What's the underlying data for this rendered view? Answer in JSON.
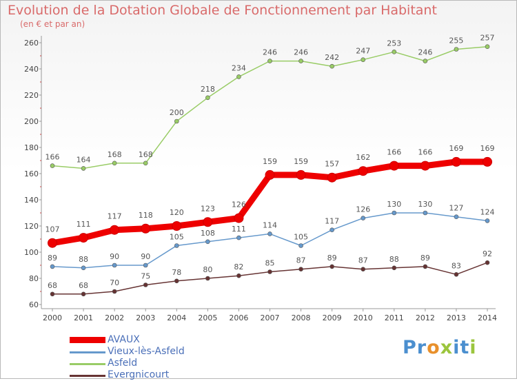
{
  "title": "Evolution de la Dotation Globale de Fonctionnement par Habitant",
  "subtitle": "(en € et par an)",
  "logo": {
    "text": "Proxiti",
    "letters": [
      {
        "ch": "P",
        "color": "#4b8fcf"
      },
      {
        "ch": "r",
        "color": "#4b8fcf"
      },
      {
        "ch": "o",
        "color": "#e8902c"
      },
      {
        "ch": "x",
        "color": "#9bc53d"
      },
      {
        "ch": "i",
        "color": "#4b8fcf"
      },
      {
        "ch": "t",
        "color": "#4b8fcf"
      },
      {
        "ch": "i",
        "color": "#9bc53d"
      }
    ]
  },
  "chart_data": {
    "type": "line",
    "title": "Evolution de la Dotation Globale de Fonctionnement par Habitant",
    "subtitle": "(en € et par an)",
    "xlabel": "",
    "ylabel": "",
    "x": [
      "2000",
      "2001",
      "2002",
      "2003",
      "2004",
      "2005",
      "2006",
      "2007",
      "2008",
      "2009",
      "2010",
      "2011",
      "2012",
      "2013",
      "2014"
    ],
    "ylim": [
      60,
      260
    ],
    "yticks": [
      60,
      80,
      100,
      120,
      140,
      160,
      180,
      200,
      220,
      240,
      260
    ],
    "grid": false,
    "legend_position": "bottom-left",
    "series": [
      {
        "name": "AVAUX",
        "color": "#ee0000",
        "values": [
          107,
          111,
          117,
          118,
          120,
          123,
          126,
          159,
          159,
          157,
          162,
          166,
          166,
          169,
          169
        ]
      },
      {
        "name": "Vieux-lès-Asfeld",
        "color": "#6699cc",
        "values": [
          89,
          88,
          90,
          90,
          105,
          108,
          111,
          114,
          105,
          117,
          126,
          130,
          130,
          127,
          124
        ]
      },
      {
        "name": "Asfeld",
        "color": "#99cc66",
        "values": [
          166,
          164,
          168,
          168,
          200,
          218,
          234,
          246,
          246,
          242,
          247,
          253,
          246,
          255,
          257
        ]
      },
      {
        "name": "Evergnicourt",
        "color": "#663333",
        "values": [
          68,
          68,
          70,
          75,
          78,
          80,
          82,
          85,
          87,
          89,
          87,
          88,
          89,
          83,
          92
        ]
      }
    ],
    "value_labels": [
      [
        107,
        111,
        117,
        118,
        120,
        123,
        126,
        159,
        159,
        157,
        162,
        166,
        166,
        169,
        169
      ],
      [
        89,
        88,
        90,
        90,
        105,
        108,
        111,
        114,
        105,
        117,
        126,
        130,
        130,
        127,
        124
      ],
      [
        166,
        164,
        168,
        168,
        200,
        218,
        234,
        246,
        246,
        242,
        247,
        253,
        246,
        255,
        257
      ],
      [
        68,
        68,
        70,
        75,
        78,
        80,
        82,
        85,
        87,
        89,
        87,
        88,
        89,
        83,
        92
      ]
    ]
  }
}
